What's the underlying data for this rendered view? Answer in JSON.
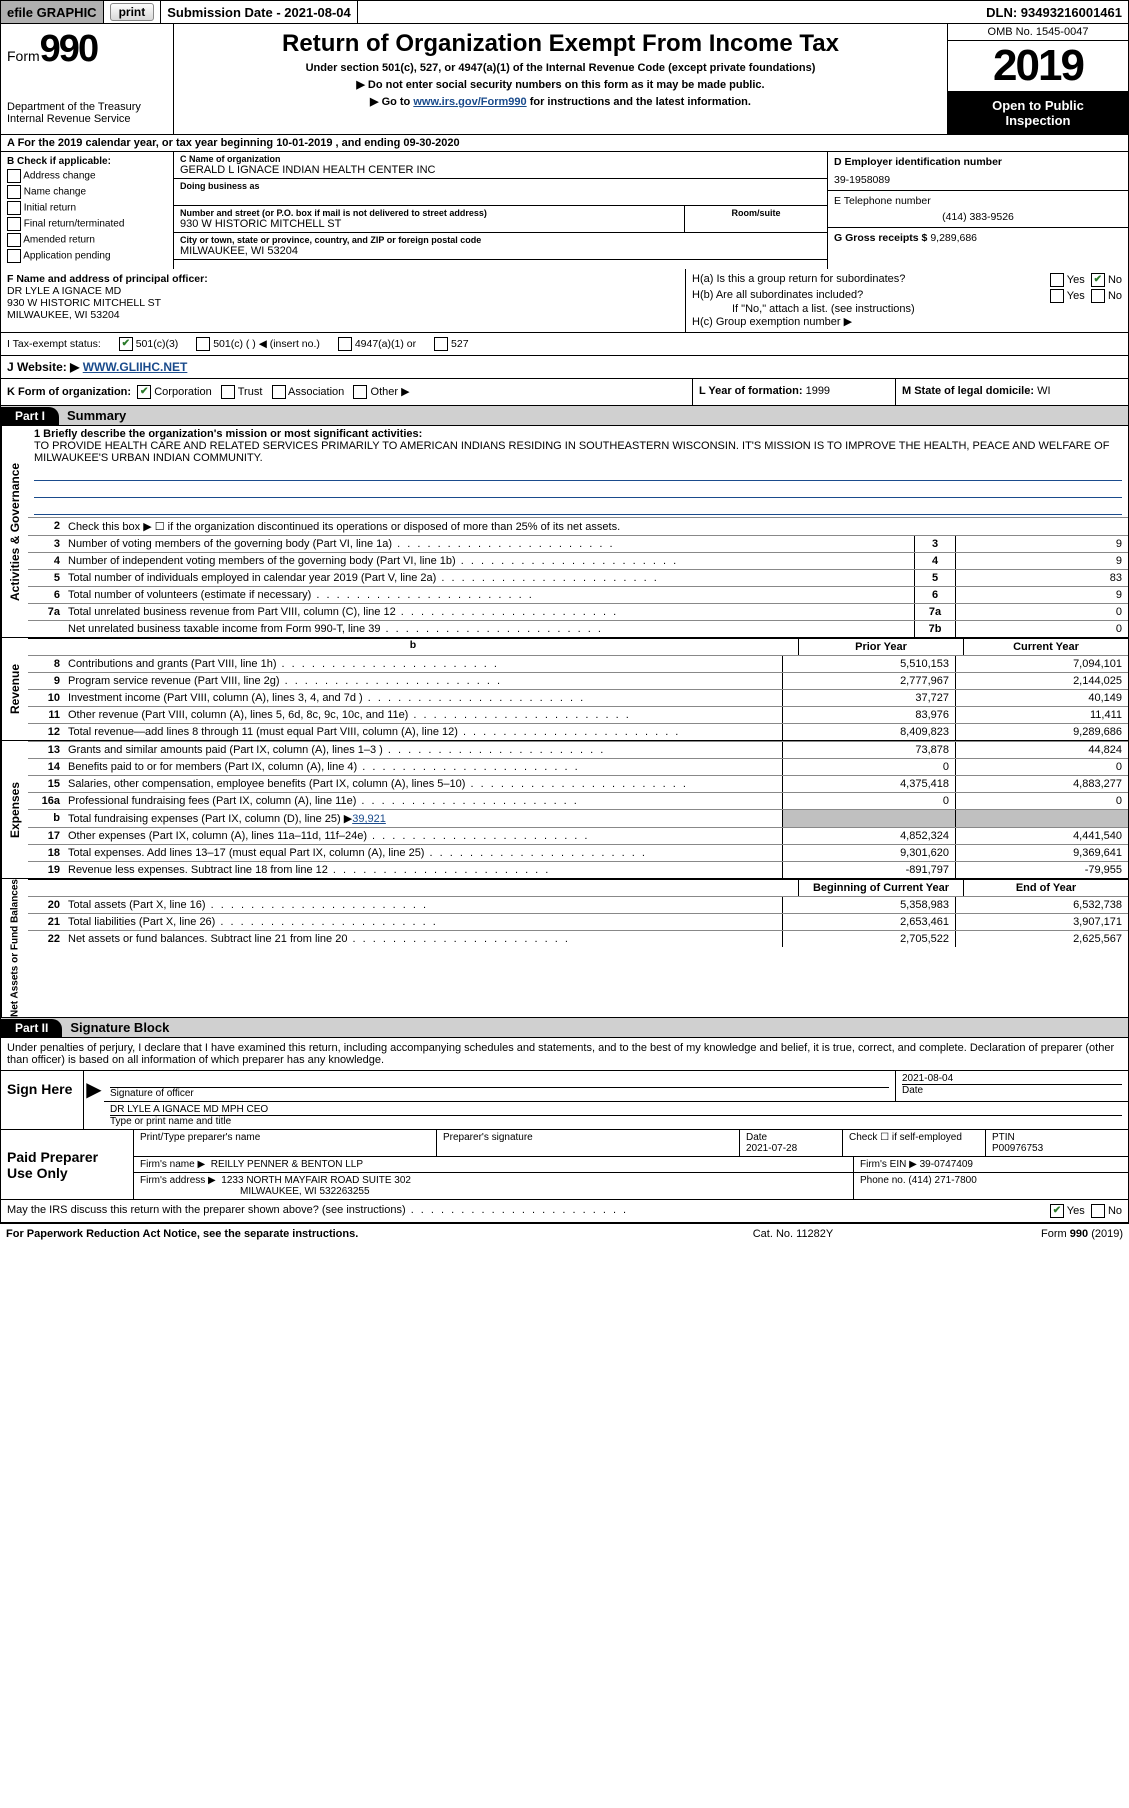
{
  "colors": {
    "link": "#1a4b8c",
    "header_bg": "#000000",
    "header_fg": "#ffffff",
    "gray_bg": "#d0d0d0",
    "shade": "#c0c0c0",
    "check_green": "#2a7a2a"
  },
  "topbar": {
    "efile_label": "efile GRAPHIC",
    "print_btn": "print",
    "sub_label": "Submission Date - 2021-08-04",
    "dln": "DLN: 93493216001461"
  },
  "head": {
    "form_prefix": "Form",
    "form_number": "990",
    "dept1": "Department of the Treasury",
    "dept2": "Internal Revenue Service",
    "title": "Return of Organization Exempt From Income Tax",
    "sub1": "Under section 501(c), 527, or 4947(a)(1) of the Internal Revenue Code (except private foundations)",
    "sub2a": "▶ Do not enter social security numbers on this form as it may be made public.",
    "sub2b_pre": "▶ Go to ",
    "sub2b_link": "www.irs.gov/Form990",
    "sub2b_post": " for instructions and the latest information.",
    "omb": "OMB No. 1545-0047",
    "year": "2019",
    "inspect1": "Open to Public",
    "inspect2": "Inspection"
  },
  "rowA": "A  For the 2019 calendar year, or tax year beginning 10-01-2019     , and ending 09-30-2020",
  "boxB": {
    "label": "B Check if applicable:",
    "items": [
      "Address change",
      "Name change",
      "Initial return",
      "Final return/terminated",
      "Amended return",
      "Application pending"
    ]
  },
  "boxC": {
    "name_lbl": "C Name of organization",
    "name_val": "GERALD L IGNACE INDIAN HEALTH CENTER INC",
    "dba_lbl": "Doing business as",
    "addr_lbl": "Number and street (or P.O. box if mail is not delivered to street address)",
    "room_lbl": "Room/suite",
    "addr_val": "930 W HISTORIC MITCHELL ST",
    "city_lbl": "City or town, state or province, country, and ZIP or foreign postal code",
    "city_val": "MILWAUKEE, WI  53204"
  },
  "boxD": {
    "lbl": "D Employer identification number",
    "val": "39-1958089"
  },
  "boxE": {
    "lbl": "E Telephone number",
    "val": "(414) 383-9526"
  },
  "boxG": {
    "lbl": "G Gross receipts $",
    "val": "9,289,686"
  },
  "boxF": {
    "lbl": "F  Name and address of principal officer:",
    "l1": "DR LYLE A IGNACE MD",
    "l2": "930 W HISTORIC MITCHELL ST",
    "l3": "MILWAUKEE, WI  53204"
  },
  "boxH": {
    "a_lbl": "H(a)  Is this a group return for subordinates?",
    "b_lbl": "H(b)  Are all subordinates included?",
    "note": "If \"No,\" attach a list. (see instructions)",
    "c_lbl": "H(c)  Group exemption number ▶",
    "yes": "Yes",
    "no": "No"
  },
  "rowI": {
    "lbl": "I   Tax-exempt status:",
    "o1": "501(c)(3)",
    "o2": "501(c) (  ) ◀ (insert no.)",
    "o3": "4947(a)(1) or",
    "o4": "527"
  },
  "rowJ": {
    "lbl": "J   Website: ▶ ",
    "val": "WWW.GLIIHC.NET"
  },
  "rowK": {
    "lbl": "K Form of organization:",
    "o1": "Corporation",
    "o2": "Trust",
    "o3": "Association",
    "o4": "Other ▶"
  },
  "rowL": {
    "lbl": "L Year of formation:",
    "val": "1999"
  },
  "rowM": {
    "lbl": "M State of legal domicile:",
    "val": "WI"
  },
  "part1": {
    "tag": "Part I",
    "title": "Summary"
  },
  "p1": {
    "tab_act": "Activities & Governance",
    "tab_rev": "Revenue",
    "tab_exp": "Expenses",
    "tab_net": "Net Assets or Fund Balances",
    "l1_lbl": "1  Briefly describe the organization's mission or most significant activities:",
    "l1_val": "TO PROVIDE HEALTH CARE AND RELATED SERVICES PRIMARILY TO AMERICAN INDIANS RESIDING IN SOUTHEASTERN WISCONSIN. IT'S MISSION IS TO IMPROVE THE HEALTH, PEACE AND WELFARE OF MILWAUKEE'S URBAN INDIAN COMMUNITY.",
    "l2": "Check this box ▶ ☐  if the organization discontinued its operations or disposed of more than 25% of its net assets.",
    "rows_gov": [
      {
        "n": "3",
        "t": "Number of voting members of the governing body (Part VI, line 1a)",
        "box": "3",
        "v": "9"
      },
      {
        "n": "4",
        "t": "Number of independent voting members of the governing body (Part VI, line 1b)",
        "box": "4",
        "v": "9"
      },
      {
        "n": "5",
        "t": "Total number of individuals employed in calendar year 2019 (Part V, line 2a)",
        "box": "5",
        "v": "83"
      },
      {
        "n": "6",
        "t": "Total number of volunteers (estimate if necessary)",
        "box": "6",
        "v": "9"
      },
      {
        "n": "7a",
        "t": "Total unrelated business revenue from Part VIII, column (C), line 12",
        "box": "7a",
        "v": "0"
      },
      {
        "n": " ",
        "t": "Net unrelated business taxable income from Form 990-T, line 39",
        "box": "7b",
        "v": "0"
      }
    ],
    "hdr_prior": "Prior Year",
    "hdr_curr": "Current Year",
    "rows_rev": [
      {
        "n": "8",
        "t": "Contributions and grants (Part VIII, line 1h)",
        "p": "5,510,153",
        "c": "7,094,101"
      },
      {
        "n": "9",
        "t": "Program service revenue (Part VIII, line 2g)",
        "p": "2,777,967",
        "c": "2,144,025"
      },
      {
        "n": "10",
        "t": "Investment income (Part VIII, column (A), lines 3, 4, and 7d )",
        "p": "37,727",
        "c": "40,149"
      },
      {
        "n": "11",
        "t": "Other revenue (Part VIII, column (A), lines 5, 6d, 8c, 9c, 10c, and 11e)",
        "p": "83,976",
        "c": "11,411"
      },
      {
        "n": "12",
        "t": "Total revenue—add lines 8 through 11 (must equal Part VIII, column (A), line 12)",
        "p": "8,409,823",
        "c": "9,289,686"
      }
    ],
    "rows_exp": [
      {
        "n": "13",
        "t": "Grants and similar amounts paid (Part IX, column (A), lines 1–3 )",
        "p": "73,878",
        "c": "44,824"
      },
      {
        "n": "14",
        "t": "Benefits paid to or for members (Part IX, column (A), line 4)",
        "p": "0",
        "c": "0"
      },
      {
        "n": "15",
        "t": "Salaries, other compensation, employee benefits (Part IX, column (A), lines 5–10)",
        "p": "4,375,418",
        "c": "4,883,277"
      },
      {
        "n": "16a",
        "t": "Professional fundraising fees (Part IX, column (A), line 11e)",
        "p": "0",
        "c": "0"
      },
      {
        "n": "b",
        "t": "Total fundraising expenses (Part IX, column (D), line 25) ▶",
        "p": "",
        "c": "",
        "link": "39,921",
        "gray": true
      },
      {
        "n": "17",
        "t": "Other expenses (Part IX, column (A), lines 11a–11d, 11f–24e)",
        "p": "4,852,324",
        "c": "4,441,540"
      },
      {
        "n": "18",
        "t": "Total expenses. Add lines 13–17 (must equal Part IX, column (A), line 25)",
        "p": "9,301,620",
        "c": "9,369,641"
      },
      {
        "n": "19",
        "t": "Revenue less expenses. Subtract line 18 from line 12",
        "p": "-891,797",
        "c": "-79,955"
      }
    ],
    "hdr_beg": "Beginning of Current Year",
    "hdr_end": "End of Year",
    "rows_net": [
      {
        "n": "20",
        "t": "Total assets (Part X, line 16)",
        "p": "5,358,983",
        "c": "6,532,738"
      },
      {
        "n": "21",
        "t": "Total liabilities (Part X, line 26)",
        "p": "2,653,461",
        "c": "3,907,171"
      },
      {
        "n": "22",
        "t": "Net assets or fund balances. Subtract line 21 from line 20",
        "p": "2,705,522",
        "c": "2,625,567"
      }
    ]
  },
  "part2": {
    "tag": "Part II",
    "title": "Signature Block"
  },
  "p2_decl": "Under penalties of perjury, I declare that I have examined this return, including accompanying schedules and statements, and to the best of my knowledge and belief, it is true, correct, and complete. Declaration of preparer (other than officer) is based on all information of which preparer has any knowledge.",
  "sign": {
    "here": "Sign Here",
    "sig_lbl": "Signature of officer",
    "date_lbl": "Date",
    "date_val": "2021-08-04",
    "name_val": "DR LYLE A IGNACE MD MPH CEO",
    "name_lbl": "Type or print name and title"
  },
  "prep": {
    "here": "Paid Preparer Use Only",
    "c1": "Print/Type preparer's name",
    "c2": "Preparer's signature",
    "c3_lbl": "Date",
    "c3_val": "2021-07-28",
    "c4": "Check ☐ if self-employed",
    "c5_lbl": "PTIN",
    "c5_val": "P00976753",
    "firm_lbl": "Firm's name    ▶",
    "firm_val": "REILLY PENNER & BENTON LLP",
    "ein_lbl": "Firm's EIN ▶",
    "ein_val": "39-0747409",
    "addr_lbl": "Firm's address ▶",
    "addr_val1": "1233 NORTH MAYFAIR ROAD SUITE 302",
    "addr_val2": "MILWAUKEE, WI  532263255",
    "phone_lbl": "Phone no.",
    "phone_val": "(414) 271-7800"
  },
  "discuss": {
    "q": "May the IRS discuss this return with the preparer shown above? (see instructions)",
    "yes": "Yes",
    "no": "No"
  },
  "foot": {
    "l": "For Paperwork Reduction Act Notice, see the separate instructions.",
    "m": "Cat. No. 11282Y",
    "r_pre": "Form ",
    "r_b": "990",
    "r_post": " (2019)"
  }
}
